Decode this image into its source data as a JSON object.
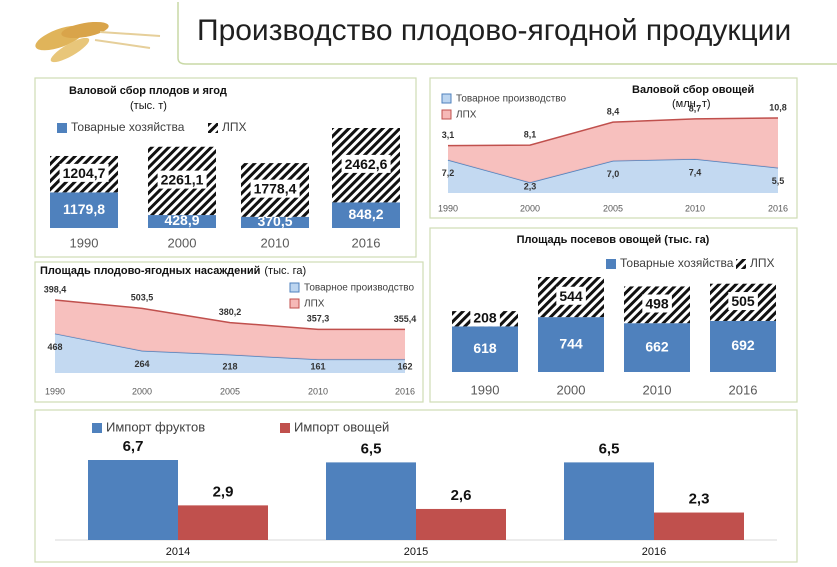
{
  "page_title": "Производство плодово-ягодной продукции",
  "chart_data": [
    {
      "type": "stacked-bar",
      "title": "Валовой сбор плодов и ягод",
      "subtitle": "(тыс. т)",
      "categories": [
        "1990",
        "2000",
        "2010",
        "2016"
      ],
      "series": [
        {
          "name": "Товарные хозяйства",
          "color": "#4f81bd",
          "values": [
            1179.8,
            428.9,
            370.5,
            848.2
          ],
          "value_labels": [
            "1179,8",
            "428,9",
            "370,5",
            "848,2"
          ]
        },
        {
          "name": "ЛПХ",
          "color": "#000000",
          "pattern": "hatch",
          "values": [
            1204.7,
            2261.1,
            1778.4,
            2462.6
          ],
          "value_labels": [
            "1204,7",
            "2261,1",
            "1778,4",
            "2462,6"
          ]
        }
      ]
    },
    {
      "type": "stacked-area",
      "title": "Валовой сбор овощей",
      "subtitle": "(млн. т)",
      "categories": [
        "1990",
        "2000",
        "2005",
        "2010",
        "2016"
      ],
      "series": [
        {
          "name": "Товарное производство",
          "color": "#bcd5f0",
          "edge_color": "#4f81bd",
          "values": [
            7.2,
            2.3,
            7.0,
            7.4,
            5.5
          ],
          "value_labels": [
            "7,2",
            "2,3",
            "7,0",
            "7,4",
            "5,5"
          ]
        },
        {
          "name": "ЛПХ",
          "color": "#f6b9b7",
          "edge_color": "#c0504d",
          "values": [
            3.1,
            8.1,
            8.4,
            8.7,
            10.8
          ],
          "value_labels": [
            "3,1",
            "8,1",
            "8,4",
            "8,7",
            "10,8"
          ]
        }
      ]
    },
    {
      "type": "stacked-area",
      "title": "Площадь плодово-ягодных насаждений",
      "subtitle": "(тыс. га)",
      "categories": [
        "1990",
        "2000",
        "2005",
        "2010",
        "2016"
      ],
      "series": [
        {
          "name": "Товарное производство",
          "color": "#bcd5f0",
          "edge_color": "#4f81bd",
          "values": [
            468,
            264,
            218,
            161,
            162
          ]
        },
        {
          "name": "ЛПХ",
          "color": "#f6b9b7",
          "edge_color": "#c0504d",
          "values": [
            398.4,
            503.5,
            380.2,
            357.3,
            355.4
          ],
          "value_labels": [
            "398,4",
            "503,5",
            "380,2",
            "357,3",
            "355,4"
          ]
        }
      ]
    },
    {
      "type": "stacked-bar",
      "title": "Площадь посевов овощей (тыс. га)",
      "categories": [
        "1990",
        "2000",
        "2010",
        "2016"
      ],
      "series": [
        {
          "name": "Товарные хозяйства",
          "color": "#4f81bd",
          "values": [
            618,
            744,
            662,
            692
          ]
        },
        {
          "name": "ЛПХ",
          "color": "#000000",
          "pattern": "hatch",
          "values": [
            208,
            544,
            498,
            505
          ]
        }
      ]
    },
    {
      "type": "grouped-bar",
      "categories": [
        "2014",
        "2015",
        "2016"
      ],
      "series": [
        {
          "name": "Импорт фруктов",
          "color": "#4f81bd",
          "values": [
            6.7,
            6.5,
            6.5
          ],
          "value_labels": [
            "6,7",
            "6,5",
            "6,5"
          ]
        },
        {
          "name": "Импорт овощей",
          "color": "#c0504d",
          "values": [
            2.9,
            2.6,
            2.3
          ],
          "value_labels": [
            "2,9",
            "2,6",
            "2,3"
          ]
        }
      ]
    }
  ]
}
